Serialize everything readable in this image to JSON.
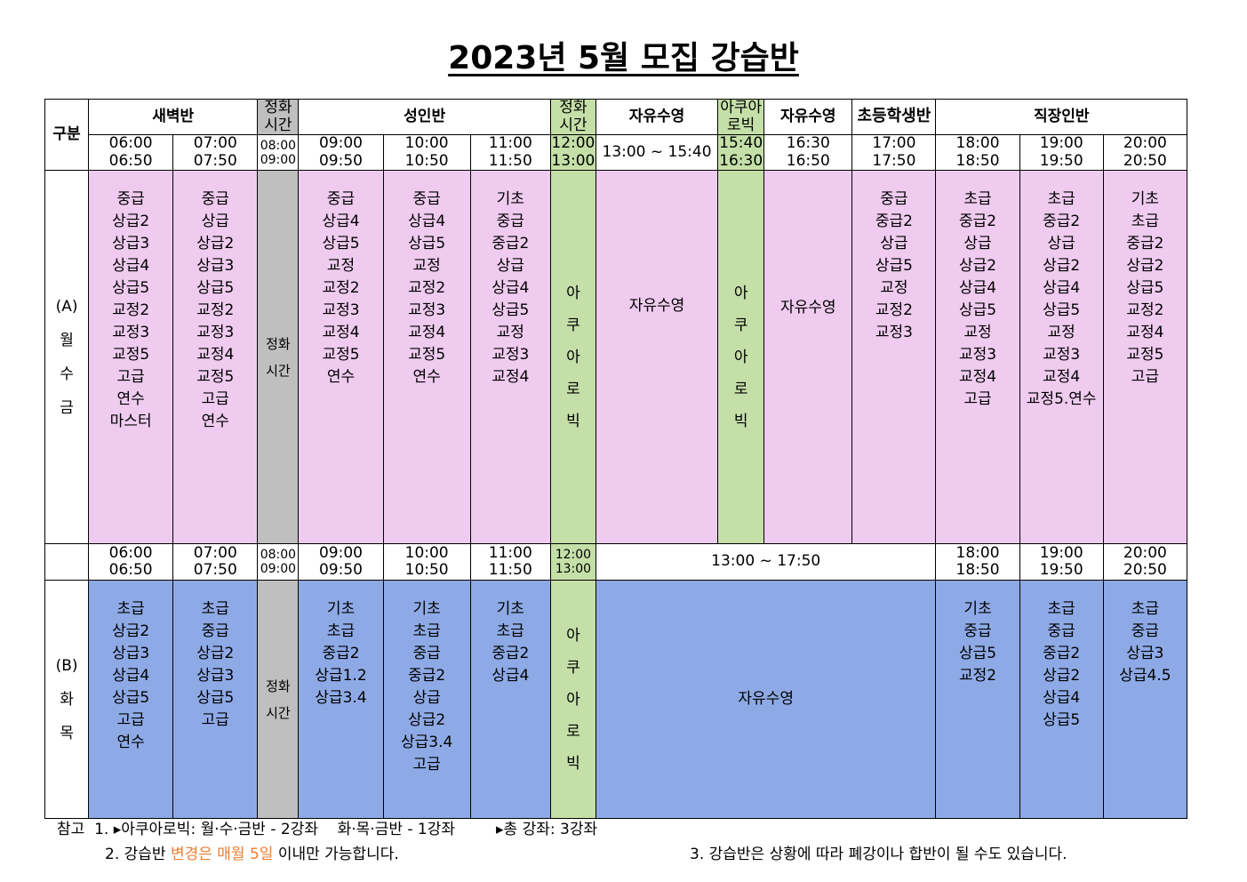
{
  "title": "2023년 5월 모집 강습반",
  "header": {
    "gubun": "구분",
    "saebyeok": "새벽반",
    "jeonghwa": "정화\n시간",
    "seongin": "성인반",
    "jayu": "자유수영",
    "aqua": "아쿠아\n로빅",
    "chodeung": "초등학생반",
    "jikjang": "직장인반"
  },
  "times_a": {
    "t0600": "06:00",
    "t0650": "06:50",
    "t0700": "07:00",
    "t0750": "07:50",
    "t0800": "08:00",
    "t0900a": "09:00",
    "t0900": "09:00",
    "t0950": "09:50",
    "t1000": "10:00",
    "t1050": "10:50",
    "t1100": "11:00",
    "t1150": "11:50",
    "t1200": "12:00",
    "t1300": "13:00",
    "free1": "13:00 ~ 15:40",
    "t1540": "15:40",
    "t1630": "16:30",
    "t1630b": "16:30",
    "t1650": "16:50",
    "t1700": "17:00",
    "t1750": "17:50",
    "t1800": "18:00",
    "t1850": "18:50",
    "t1900": "19:00",
    "t1950": "19:50",
    "t2000": "20:00",
    "t2050": "20:50"
  },
  "row_a": {
    "label": [
      "(A)",
      "월",
      "수",
      "금"
    ],
    "col_0600": [
      "중급",
      "상급2",
      "상급3",
      "상급4",
      "상급5",
      "교정2",
      "교정3",
      "교정5",
      "고급",
      "연수",
      "마스터"
    ],
    "col_0700": [
      "중급",
      "상급",
      "상급2",
      "상급3",
      "상급5",
      "교정2",
      "교정3",
      "교정4",
      "교정5",
      "고급",
      "연수"
    ],
    "jeonghwa": [
      "정화",
      "시간"
    ],
    "col_0900": [
      "중급",
      "상급4",
      "상급5",
      "교정",
      "교정2",
      "교정3",
      "교정4",
      "교정5",
      "연수"
    ],
    "col_1000": [
      "중급",
      "상급4",
      "상급5",
      "교정",
      "교정2",
      "교정3",
      "교정4",
      "교정5",
      "연수"
    ],
    "col_1100": [
      "기초",
      "중급",
      "중급2",
      "상급",
      "상급4",
      "상급5",
      "교정",
      "교정3",
      "교정4"
    ],
    "aqua1": [
      "아",
      "쿠",
      "아",
      "로",
      "빅"
    ],
    "free1": "자유수영",
    "aqua2": [
      "아",
      "쿠",
      "아",
      "로",
      "빅"
    ],
    "free2": "자유수영",
    "col_1700": [
      "중급",
      "중급2",
      "상급",
      "상급5",
      "교정",
      "교정2",
      "교정3"
    ],
    "col_1800": [
      "초급",
      "중급2",
      "상급",
      "상급2",
      "상급4",
      "상급5",
      "교정",
      "교정3",
      "교정4",
      "고급"
    ],
    "col_1900": [
      "초급",
      "중급2",
      "상급",
      "상급2",
      "상급4",
      "상급5",
      "교정",
      "교정3",
      "교정4",
      "교정5.연수"
    ],
    "col_2000": [
      "기초",
      "초급",
      "중급2",
      "상급2",
      "상급5",
      "교정2",
      "교정4",
      "교정5",
      "고급"
    ]
  },
  "times_b": {
    "t0600": "06:00",
    "t0650": "06:50",
    "t0700": "07:00",
    "t0750": "07:50",
    "t0800": "08:00",
    "t0900a": "09:00",
    "t0900": "09:00",
    "t0950": "09:50",
    "t1000": "10:00",
    "t1050": "10:50",
    "t1100": "11:00",
    "t1150": "11:50",
    "t1200": "12:00",
    "t1300": "13:00",
    "free": "13:00 ~ 17:50",
    "t1800": "18:00",
    "t1850": "18:50",
    "t1900": "19:00",
    "t1950": "19:50",
    "t2000": "20:00",
    "t2050": "20:50"
  },
  "row_b": {
    "label": [
      "(B)",
      "화",
      "목"
    ],
    "col_0600": [
      "초급",
      "상급2",
      "상급3",
      "상급4",
      "상급5",
      "고급",
      "연수"
    ],
    "col_0700": [
      "초급",
      "중급",
      "상급2",
      "상급3",
      "상급5",
      "고급"
    ],
    "jeonghwa": [
      "정화",
      "시간"
    ],
    "col_0900": [
      "기초",
      "초급",
      "중급2",
      "상급1.2",
      "상급3.4"
    ],
    "col_1000": [
      "기초",
      "초급",
      "중급",
      "중급2",
      "상급",
      "상급2",
      "상급3.4",
      "고급"
    ],
    "col_1100": [
      "기초",
      "초급",
      "중급2",
      "상급4"
    ],
    "aqua": [
      "아",
      "쿠",
      "아",
      "로",
      "빅"
    ],
    "free": "자유수영",
    "col_1800": [
      "기초",
      "중급",
      "상급5",
      "교정2"
    ],
    "col_1900": [
      "초급",
      "중급",
      "중급2",
      "상급2",
      "상급4",
      "상급5"
    ],
    "col_2000": [
      "초급",
      "중급",
      "상급3",
      "상급4.5"
    ]
  },
  "notes": {
    "line1_prefix": "참고  1. ",
    "line1_a": "▸아쿠아로빅: 월·수·금반 - 2강좌    화·목·금반 - 1강좌",
    "line1_b": "▸총 강좌: 3강좌",
    "line2_a": "2. 강습반 ",
    "line2_orange": "변경은 매월 5일",
    "line2_b": " 이내만 가능합니다.",
    "line3": "3. 강습반은 상황에 따라 폐강이나 합반이 될 수도 있습니다."
  },
  "colors": {
    "pink": "#efcbef",
    "blue": "#8eaae6",
    "green": "#c4e0a8",
    "gray": "#bfbfbf",
    "orange": "#ed7d31"
  }
}
